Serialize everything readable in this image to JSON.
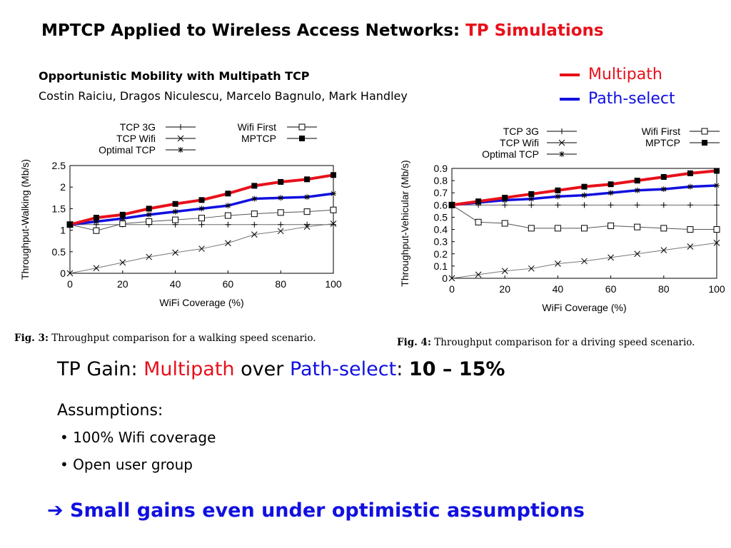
{
  "slide": {
    "title_main": "MPTCP Applied to Wireless Access Networks:",
    "title_highlight": "TP Simulations",
    "paper_title": "Opportunistic Mobility with Multipath TCP",
    "paper_authors": "Costin Raiciu, Dragos Niculescu,  Marcelo Bagnulo, Mark Handley",
    "legend_multipath": "Multipath",
    "legend_pathselect": "Path-select",
    "gain_prefix": "TP Gain:",
    "gain_multipath": "Multipath",
    "gain_over": "over",
    "gain_pathselect": "Path-select",
    "gain_colon": ":",
    "gain_value": "10 – 15%",
    "assumptions_label": "Assumptions:",
    "bullets": [
      "100% Wifi coverage",
      "Open user group"
    ],
    "conclusion_arrow": "➔",
    "conclusion": "Small gains even under optimistic assumptions",
    "colors": {
      "red": "#e8101a",
      "blue": "#1010e0"
    }
  },
  "captions": [
    {
      "label": "Fig. 3:",
      "text": "Throughput comparison for a walking speed scenario."
    },
    {
      "label": "Fig. 4:",
      "text": "Throughput comparison for a driving speed scenario."
    }
  ],
  "chart_data": [
    {
      "type": "line",
      "xlabel": "WiFi Coverage (%)",
      "ylabel": "Throughput-Walking (Mb/s)",
      "xlim": [
        0,
        100
      ],
      "ylim": [
        0,
        2.5
      ],
      "xticks": [
        0,
        20,
        40,
        60,
        80,
        100
      ],
      "yticks": [
        0,
        0.5,
        1,
        1.5,
        2,
        2.5
      ],
      "ytick_labels": [
        "0",
        "0.5",
        "1",
        "1.5",
        "2",
        "2.5"
      ],
      "x": [
        0,
        10,
        20,
        30,
        40,
        50,
        60,
        70,
        80,
        90,
        100
      ],
      "legend_position": "top",
      "series": [
        {
          "name": "TCP 3G",
          "marker": "plus",
          "values": [
            1.13,
            1.13,
            1.13,
            1.13,
            1.13,
            1.13,
            1.13,
            1.13,
            1.13,
            1.13,
            1.13
          ]
        },
        {
          "name": "TCP Wifi",
          "marker": "x",
          "values": [
            0,
            0.12,
            0.25,
            0.38,
            0.48,
            0.57,
            0.7,
            0.9,
            0.98,
            1.08,
            1.15
          ]
        },
        {
          "name": "Optimal TCP",
          "marker": "star",
          "values": [
            1.13,
            1.2,
            1.27,
            1.36,
            1.43,
            1.5,
            1.57,
            1.73,
            1.75,
            1.77,
            1.85
          ]
        },
        {
          "name": "Wifi First",
          "marker": "square-open",
          "values": [
            1.13,
            0.99,
            1.15,
            1.2,
            1.24,
            1.28,
            1.34,
            1.38,
            1.41,
            1.43,
            1.47
          ]
        },
        {
          "name": "MPTCP",
          "marker": "square-filled",
          "values": [
            1.13,
            1.29,
            1.36,
            1.5,
            1.61,
            1.7,
            1.85,
            2.03,
            2.12,
            2.18,
            2.28
          ]
        }
      ]
    },
    {
      "type": "line",
      "xlabel": "WiFi Coverage (%)",
      "ylabel": "Throughput-Vehicular (Mb/s)",
      "xlim": [
        0,
        100
      ],
      "ylim": [
        0,
        0.9
      ],
      "xticks": [
        0,
        20,
        40,
        60,
        80,
        100
      ],
      "yticks": [
        0,
        0.1,
        0.2,
        0.3,
        0.4,
        0.5,
        0.6,
        0.7,
        0.8,
        0.9
      ],
      "ytick_labels": [
        "0",
        "0.1",
        "0.2",
        "0.3",
        "0.4",
        "0.5",
        "0.6",
        "0.7",
        "0.8",
        "0.9"
      ],
      "x": [
        0,
        10,
        20,
        30,
        40,
        50,
        60,
        70,
        80,
        90,
        100
      ],
      "legend_position": "top",
      "series": [
        {
          "name": "TCP 3G",
          "marker": "plus",
          "values": [
            0.6,
            0.6,
            0.6,
            0.6,
            0.6,
            0.6,
            0.6,
            0.6,
            0.6,
            0.6,
            0.6
          ]
        },
        {
          "name": "TCP Wifi",
          "marker": "x",
          "values": [
            0,
            0.03,
            0.06,
            0.08,
            0.12,
            0.14,
            0.17,
            0.2,
            0.23,
            0.26,
            0.29
          ]
        },
        {
          "name": "Optimal TCP",
          "marker": "star",
          "values": [
            0.6,
            0.62,
            0.64,
            0.65,
            0.67,
            0.68,
            0.7,
            0.72,
            0.73,
            0.75,
            0.76
          ]
        },
        {
          "name": "Wifi First",
          "marker": "square-open",
          "values": [
            0.6,
            0.46,
            0.45,
            0.41,
            0.41,
            0.41,
            0.43,
            0.42,
            0.41,
            0.4,
            0.4
          ]
        },
        {
          "name": "MPTCP",
          "marker": "square-filled",
          "values": [
            0.6,
            0.63,
            0.66,
            0.69,
            0.72,
            0.75,
            0.77,
            0.8,
            0.83,
            0.86,
            0.88
          ]
        }
      ]
    }
  ]
}
